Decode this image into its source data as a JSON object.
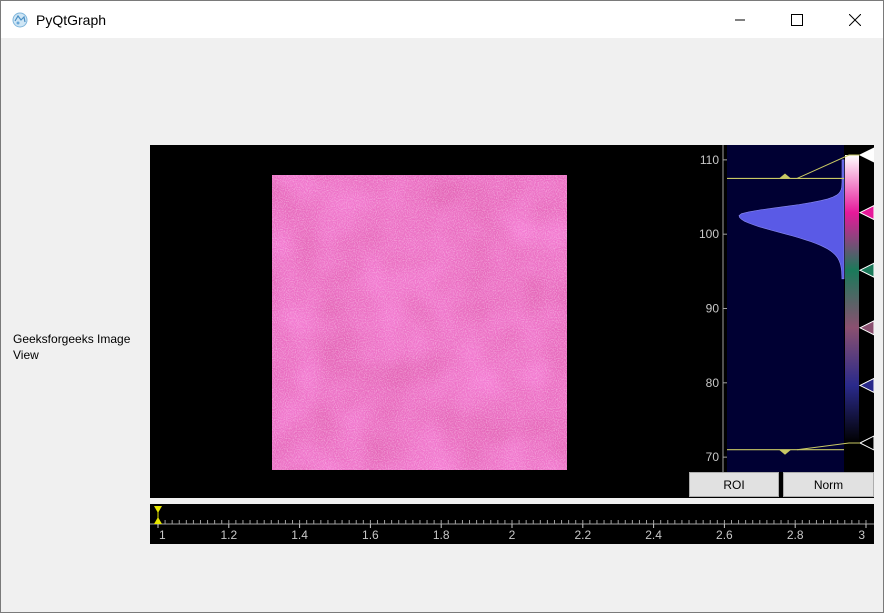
{
  "window": {
    "title": "PyQtGraph"
  },
  "label": {
    "text": "Geeksforgeeks Image View"
  },
  "histogram": {
    "axis_ticks": [
      "110",
      "100",
      "90",
      "80",
      "70"
    ],
    "axis_range": [
      68,
      112
    ],
    "level_max": 107.5,
    "level_min": 71,
    "gradient_stops": [
      {
        "pos": 1.0,
        "color": "#ffffff"
      },
      {
        "pos": 0.8,
        "color": "#e6199a"
      },
      {
        "pos": 0.6,
        "color": "#1a7a5a"
      },
      {
        "pos": 0.4,
        "color": "#8a5070"
      },
      {
        "pos": 0.2,
        "color": "#2a2a8a"
      },
      {
        "pos": 0.0,
        "color": "#000000"
      }
    ],
    "colors": {
      "panel": "#000033",
      "fill": "#5a5ae6",
      "level_line": "#c8c864"
    }
  },
  "buttons": {
    "roi": "ROI",
    "norm": "Norm"
  },
  "timeline": {
    "ticks": [
      "1",
      "1.2",
      "1.4",
      "1.6",
      "1.8",
      "2",
      "2.2",
      "2.4",
      "2.6",
      "2.8",
      "3"
    ],
    "range": [
      1,
      3
    ],
    "current": 1
  }
}
